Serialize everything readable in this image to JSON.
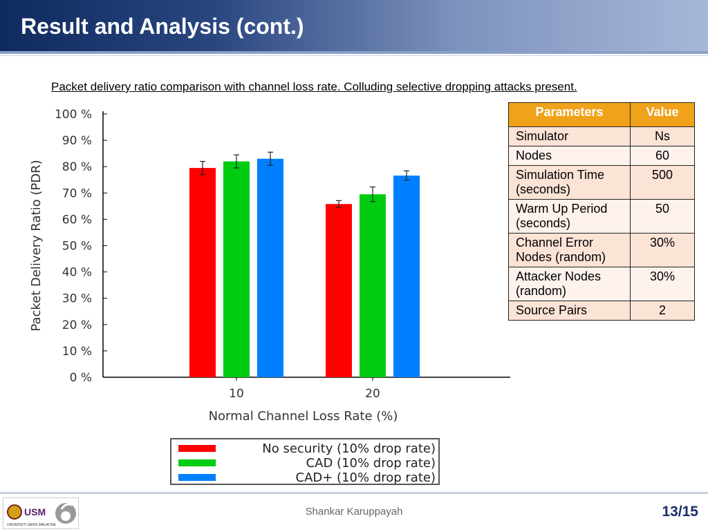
{
  "title": "Result and Analysis (cont.)",
  "caption": "Packet delivery ratio comparison with channel loss rate. Colluding selective dropping attacks present.",
  "chart_data": {
    "type": "bar",
    "xlabel": "Normal Channel Loss Rate (%)",
    "ylabel": "Packet Delivery Ratio (PDR)",
    "categories": [
      "10",
      "20"
    ],
    "ylim": [
      0,
      100
    ],
    "yticks": [
      0,
      10,
      20,
      30,
      40,
      50,
      60,
      70,
      80,
      90,
      100
    ],
    "ytick_suffix": " %",
    "grid": false,
    "legend_position": "bottom",
    "series": [
      {
        "name": "No security (10% drop rate)",
        "color": "#fe0000",
        "values": [
          79.5,
          65.8
        ],
        "error": [
          2.5,
          1.3
        ]
      },
      {
        "name": "CAD (10% drop rate)",
        "color": "#00cc11",
        "values": [
          82.0,
          69.5
        ],
        "error": [
          2.5,
          2.8
        ]
      },
      {
        "name": "CAD+ (10% drop rate)",
        "color": "#0080ff",
        "values": [
          83.0,
          76.6
        ],
        "error": [
          2.5,
          1.8
        ]
      }
    ]
  },
  "table": {
    "headers": [
      "Parameters",
      "Value"
    ],
    "rows": [
      [
        "Simulator",
        "Ns"
      ],
      [
        "Nodes",
        "60"
      ],
      [
        "Simulation Time (seconds)",
        "500"
      ],
      [
        "Warm Up Period (seconds)",
        "50"
      ],
      [
        "Channel Error Nodes (random)",
        "30%"
      ],
      [
        "Attacker Nodes (random)",
        "30%"
      ],
      [
        "Source Pairs",
        "2"
      ]
    ]
  },
  "footer": {
    "author": "Shankar Karuppayah",
    "page": "13/15",
    "logo_text": "USM",
    "logo_subtext": "UNIVERSITI SAINS MALAYSIA"
  }
}
